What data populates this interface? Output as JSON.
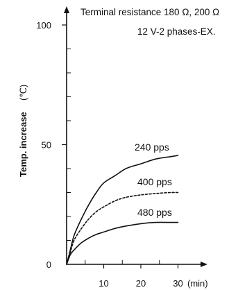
{
  "chart_data": {
    "type": "line",
    "title": "",
    "xlabel": "",
    "ylabel": "Temp. increase",
    "ylabel_unit": "(℃)",
    "x_unit": "(min)",
    "xlim": [
      0,
      35
    ],
    "ylim": [
      0,
      100
    ],
    "x_ticks": [
      10,
      20,
      30
    ],
    "x_minor_ticks": [
      5,
      15,
      25
    ],
    "y_ticks": [
      0,
      50,
      100
    ],
    "y_minor_ticks": [
      10,
      20,
      30,
      40,
      60,
      70,
      80,
      90
    ],
    "grid": false,
    "annotations": [
      "Terminal resistance 180 Ω, 200 Ω",
      "12 V-2 phases-EX."
    ],
    "series": [
      {
        "name": "240 pps",
        "style": "solid",
        "x": [
          0,
          1,
          2,
          4,
          6,
          8,
          10,
          13,
          16,
          20,
          24,
          28,
          30
        ],
        "y": [
          0,
          6,
          12,
          19,
          25,
          30,
          34,
          37,
          40,
          42,
          44,
          45,
          45.5
        ]
      },
      {
        "name": "400 pps",
        "style": "dashed",
        "x": [
          0,
          1,
          2,
          4,
          6,
          8,
          10,
          13,
          16,
          20,
          24,
          28,
          30
        ],
        "y": [
          0,
          5,
          10,
          15,
          19,
          22,
          24,
          26.5,
          28,
          29,
          29.6,
          30,
          30
        ]
      },
      {
        "name": "480 pps",
        "style": "solid",
        "x": [
          0,
          1,
          2,
          4,
          6,
          8,
          10,
          13,
          16,
          20,
          24,
          28,
          30
        ],
        "y": [
          0,
          4,
          6,
          9,
          11,
          12.5,
          13.5,
          15,
          16,
          17,
          17.5,
          17.5,
          17.5
        ]
      }
    ]
  }
}
